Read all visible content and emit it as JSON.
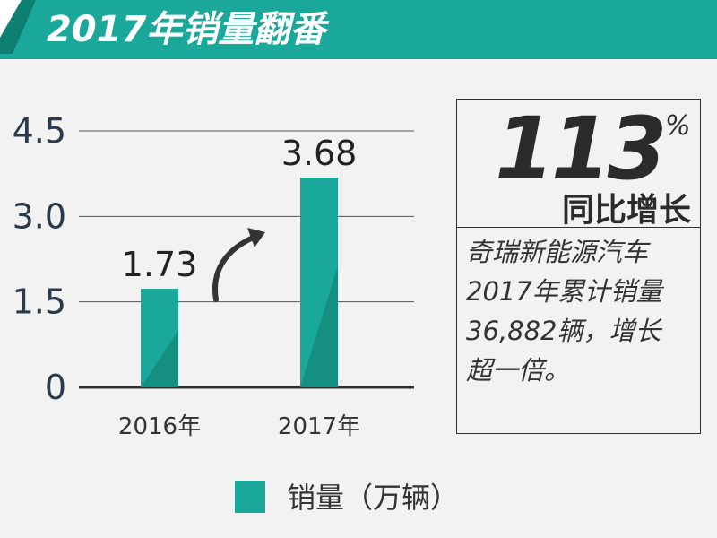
{
  "header": {
    "title": "2017年销量翻番",
    "color": "#1aa89a"
  },
  "chart_data": {
    "type": "bar",
    "categories": [
      "2016年",
      "2017年"
    ],
    "values": [
      1.73,
      3.68
    ],
    "value_labels": [
      "1.73",
      "3.68"
    ],
    "y_ticks": [
      "0",
      "1.5",
      "3.0",
      "4.5"
    ],
    "ylim": [
      0,
      4.5
    ],
    "grid": true,
    "bar_color": "#1aa89a",
    "bar_shade_color": "#168f83",
    "legend": {
      "placement": "bottom",
      "entries": [
        "销量（万辆）"
      ]
    }
  },
  "stat": {
    "big_number": "113",
    "percent_sign": "%",
    "subtitle": "同比增长",
    "description_lines": [
      "奇瑞新能源汽车",
      "2017年累计销量",
      "36,882辆，增长",
      "超一倍。"
    ]
  }
}
